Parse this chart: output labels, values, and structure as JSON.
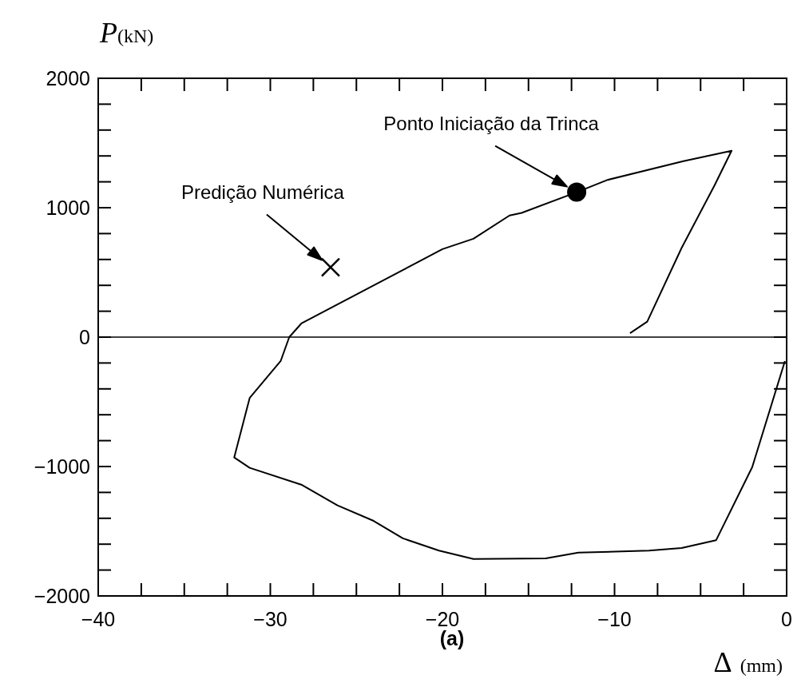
{
  "chart_data": {
    "type": "line",
    "xlabel": "Δ (mm)",
    "ylabel": "P(kN)",
    "xlim": [
      -40,
      0
    ],
    "ylim": [
      -2000,
      2000
    ],
    "xticks": [
      -40,
      {
        "value": -37.5,
        "label": null
      },
      {
        "value": -35,
        "label": null
      },
      {
        "value": -32.5,
        "label": null
      },
      -30,
      {
        "value": -27.5,
        "label": null
      },
      {
        "value": -25,
        "label": null
      },
      {
        "value": -22.5,
        "label": null
      },
      -20,
      {
        "value": -17.5,
        "label": null
      },
      {
        "value": -15,
        "label": null
      },
      {
        "value": -12.5,
        "label": null
      },
      -10,
      {
        "value": -7.5,
        "label": null
      },
      {
        "value": -5,
        "label": null
      },
      {
        "value": -2.5,
        "label": null
      },
      0
    ],
    "yticks": [
      -2000,
      {
        "value": -1800,
        "label": null
      },
      {
        "value": -1600,
        "label": null
      },
      {
        "value": -1400,
        "label": null
      },
      {
        "value": -1200,
        "label": null
      },
      -1000,
      {
        "value": -800,
        "label": null
      },
      {
        "value": -600,
        "label": null
      },
      {
        "value": -400,
        "label": null
      },
      {
        "value": -200,
        "label": null
      },
      0,
      {
        "value": 200,
        "label": null
      },
      {
        "value": 400,
        "label": null
      },
      {
        "value": 600,
        "label": null
      },
      {
        "value": 800,
        "label": null
      },
      1000,
      {
        "value": 1200,
        "label": null
      },
      {
        "value": 1400,
        "label": null
      },
      {
        "value": 1600,
        "label": null
      },
      {
        "value": 1800,
        "label": null
      },
      2000
    ],
    "grid": false,
    "ref_lines": [
      {
        "axis": "y",
        "value": 0,
        "label": null,
        "color": "#000000"
      }
    ],
    "series": [
      {
        "color": "#000000",
        "marker": "none",
        "line_style": "solid",
        "x": [
          -9.1,
          -8.1,
          -6.1,
          -4.2,
          -3.2,
          -6.0,
          -10.4,
          -12.2,
          -15.4,
          -16.1,
          -18.2,
          -20.0,
          -28.2,
          -28.9,
          -29.4,
          -31.2,
          -32.1,
          -31.2,
          -28.2,
          -26.1,
          -24.0,
          -22.3,
          -20.2,
          -18.2,
          -14.0,
          -12.1,
          -8.0,
          -6.1,
          -4.1,
          -2.0,
          -0.1
        ],
        "values": [
          30,
          120,
          690,
          1170,
          1440,
          1360,
          1215,
          1120,
          960,
          940,
          760,
          680,
          105,
          0,
          -185,
          -470,
          -930,
          -1010,
          -1140,
          -1300,
          -1420,
          -1555,
          -1650,
          -1715,
          -1710,
          -1665,
          -1650,
          -1630,
          -1570,
          -1005,
          -185
        ]
      },
      {
        "type": "scatter",
        "color": "#000000",
        "marker": "cross",
        "x": [
          -26.5
        ],
        "values": [
          540
        ]
      },
      {
        "type": "scatter",
        "color": "#000000",
        "marker": "circle",
        "x": [
          -12.2
        ],
        "values": [
          1120
        ]
      }
    ],
    "annotations": [
      "Predição Numérica",
      "Ponto Iniciação da Trinca",
      "(a)"
    ]
  }
}
